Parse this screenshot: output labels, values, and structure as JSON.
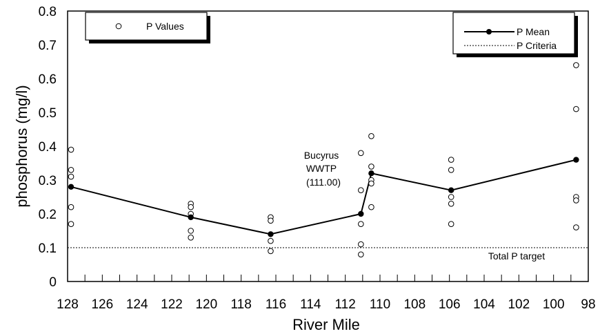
{
  "chart_data": {
    "type": "scatter",
    "xlabel": "River Mile",
    "ylabel": "phosphorus (mg/l)",
    "xlim": [
      128,
      98
    ],
    "ylim": [
      0,
      0.8
    ],
    "x_ticks": [
      128,
      126,
      124,
      122,
      120,
      118,
      116,
      114,
      112,
      110,
      108,
      106,
      104,
      102,
      100,
      98
    ],
    "x_tick_labels": [
      "128",
      "126",
      "124",
      "122",
      "120",
      "118",
      "116",
      "114",
      "112",
      "110",
      "108",
      "106",
      "104",
      "102",
      "100",
      "98"
    ],
    "y_ticks": [
      0,
      0.1,
      0.2,
      0.3,
      0.4,
      0.5,
      0.6,
      0.7,
      0.8
    ],
    "y_tick_labels": [
      "0",
      "0.1",
      "0.2",
      "0.3",
      "0.4",
      "0.5",
      "0.6",
      "0.7",
      "0.8"
    ],
    "grid": false,
    "series": [
      {
        "name": "P Values",
        "kind": "scatter",
        "marker": "open-circle",
        "points": [
          [
            127.8,
            0.39
          ],
          [
            127.8,
            0.33
          ],
          [
            127.8,
            0.31
          ],
          [
            127.8,
            0.22
          ],
          [
            127.8,
            0.17
          ],
          [
            120.9,
            0.23
          ],
          [
            120.9,
            0.22
          ],
          [
            120.9,
            0.2
          ],
          [
            120.9,
            0.15
          ],
          [
            120.9,
            0.13
          ],
          [
            116.3,
            0.19
          ],
          [
            116.3,
            0.18
          ],
          [
            116.3,
            0.12
          ],
          [
            116.3,
            0.09
          ],
          [
            111.1,
            0.38
          ],
          [
            111.1,
            0.27
          ],
          [
            111.1,
            0.17
          ],
          [
            111.1,
            0.11
          ],
          [
            111.1,
            0.08
          ],
          [
            110.5,
            0.43
          ],
          [
            110.5,
            0.34
          ],
          [
            110.5,
            0.3
          ],
          [
            110.5,
            0.29
          ],
          [
            110.5,
            0.22
          ],
          [
            105.9,
            0.36
          ],
          [
            105.9,
            0.33
          ],
          [
            105.9,
            0.25
          ],
          [
            105.9,
            0.23
          ],
          [
            105.9,
            0.17
          ],
          [
            98.7,
            0.64
          ],
          [
            98.7,
            0.51
          ],
          [
            98.7,
            0.25
          ],
          [
            98.7,
            0.24
          ],
          [
            98.7,
            0.16
          ]
        ]
      },
      {
        "name": "P Mean",
        "kind": "line",
        "marker": "filled-circle",
        "points": [
          [
            127.8,
            0.28
          ],
          [
            120.9,
            0.19
          ],
          [
            116.3,
            0.14
          ],
          [
            111.1,
            0.2
          ],
          [
            110.5,
            0.32
          ],
          [
            105.9,
            0.27
          ],
          [
            98.7,
            0.36
          ]
        ]
      },
      {
        "name": "P Criteria",
        "kind": "reference-line",
        "style": "dotted",
        "y": 0.1
      }
    ],
    "legends": [
      {
        "placement": "top-left",
        "entries": [
          "P Values"
        ]
      },
      {
        "placement": "top-right",
        "entries": [
          "P Mean",
          "P Criteria"
        ]
      }
    ],
    "annotations": [
      {
        "lines": [
          "Bucyrus",
          "WWTP",
          "(111.00)"
        ],
        "x": 111.0,
        "y": 0.31
      },
      {
        "lines": [
          "Total P target"
        ],
        "x": 103.5,
        "y": 0.07
      }
    ]
  },
  "colors": {
    "background": "#ffffff",
    "ink": "#000000",
    "shadow": "#000000"
  }
}
